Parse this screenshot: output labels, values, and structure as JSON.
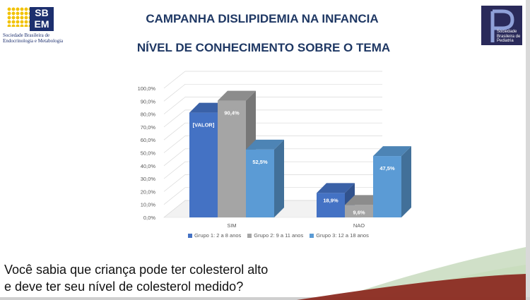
{
  "header": {
    "title_line1": "CAMPANHA DISLIPIDEMIA NA INFANCIA",
    "title_line2": "NÍVEL DE CONHECIMENTO SOBRE O TEMA"
  },
  "logos": {
    "sbem_mark": "SB EM",
    "sbem_name": "Sociedade Brasileira de Endocrinologia e Metabologia",
    "sbp_name": "Sociedade Brasileira de Pediatria"
  },
  "question": {
    "line1": "Você sabia que criança pode ter colesterol alto",
    "line2": "e deve ter seu nível de colesterol medido?"
  },
  "chart_data": {
    "type": "bar",
    "style": "3d-clustered-column",
    "categories": [
      "SIM",
      "NAO"
    ],
    "ylim": [
      0,
      100
    ],
    "yticks": [
      "0,0%",
      "10,0%",
      "20,0%",
      "30,0%",
      "40,0%",
      "50,0%",
      "60,0%",
      "70,0%",
      "80,0%",
      "90,0%",
      "100,0%"
    ],
    "grid": true,
    "legend_position": "bottom",
    "series": [
      {
        "name": "Grupo 1: 2 a 8 anos",
        "color": "#4472c4",
        "values": [
          81.1,
          18.9
        ],
        "labels": [
          "[VALOR]",
          "18,9%"
        ]
      },
      {
        "name": "Grupo 2: 9 a 11 anos",
        "color": "#a5a5a5",
        "values": [
          90.4,
          9.6
        ],
        "labels": [
          "90,4%",
          "9,6%"
        ]
      },
      {
        "name": "Grupo 3: 12 a 18 anos",
        "color": "#5b9bd5",
        "values": [
          52.5,
          47.5
        ],
        "labels": [
          "52,5%",
          "47,5%"
        ]
      }
    ]
  }
}
